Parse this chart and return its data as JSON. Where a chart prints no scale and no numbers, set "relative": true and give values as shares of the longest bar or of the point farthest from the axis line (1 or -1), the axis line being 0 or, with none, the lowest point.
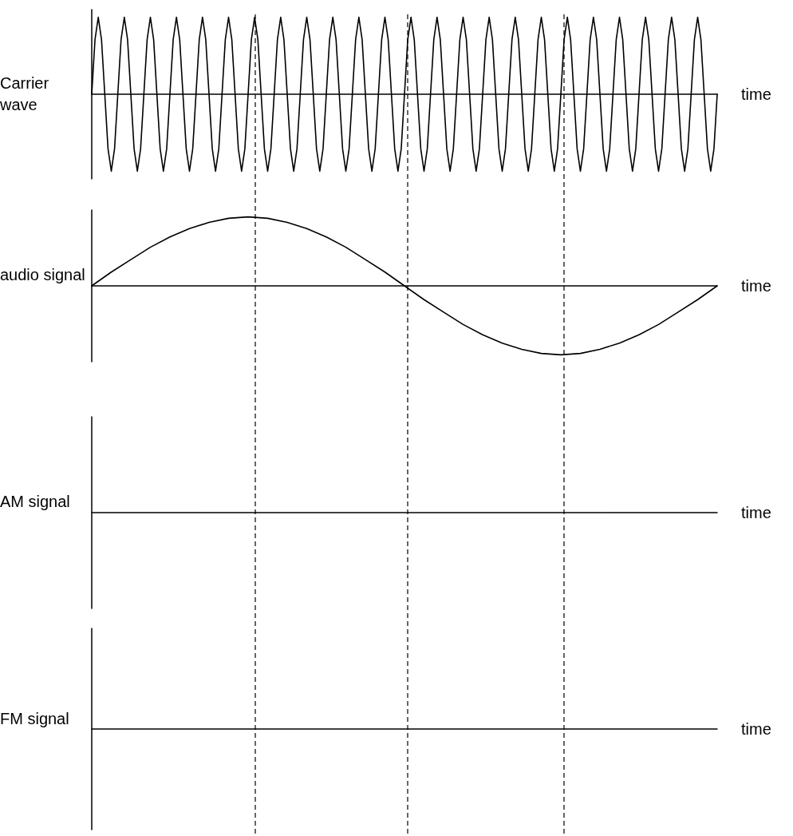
{
  "chart_data": [
    {
      "type": "line",
      "relative": true,
      "ylabel": "Carrier wave",
      "xlabel": "time",
      "marker": "none",
      "line_style": "solid",
      "categories": [
        null,
        null,
        null,
        null,
        null,
        null,
        null,
        null,
        null,
        null,
        null,
        null,
        null,
        null,
        null,
        null,
        null,
        null,
        null,
        null,
        null,
        null,
        null,
        null,
        null,
        null,
        null,
        null,
        null,
        null,
        null,
        null,
        null,
        null,
        null,
        null,
        null,
        null,
        null,
        null,
        null,
        null,
        null,
        null,
        null,
        null,
        null,
        null,
        null,
        null,
        null,
        null,
        null,
        null,
        null,
        null,
        null,
        null,
        null,
        null,
        null,
        null,
        null,
        null,
        null,
        null,
        null,
        null,
        null,
        null,
        null,
        null,
        null,
        null,
        null,
        null,
        null,
        null,
        null,
        null,
        null,
        null,
        null,
        null,
        null,
        null,
        null,
        null,
        null,
        null,
        null,
        null,
        null,
        null,
        null,
        null,
        null,
        null,
        null,
        null,
        null,
        null,
        null,
        null,
        null,
        null,
        null,
        null,
        null,
        null,
        null,
        null,
        null,
        null,
        null,
        null,
        null,
        null,
        null,
        null,
        null,
        null,
        null,
        null,
        null,
        null,
        null,
        null,
        null,
        null,
        null,
        null,
        null,
        null,
        null,
        null,
        null,
        null,
        null,
        null,
        null,
        null,
        null,
        null,
        null,
        null,
        null,
        null,
        null,
        null,
        null,
        null,
        null,
        null,
        null,
        null,
        null,
        null,
        null,
        null,
        null,
        null,
        null,
        null,
        null,
        null,
        null,
        null,
        null,
        null,
        null,
        null,
        null,
        null,
        null,
        null,
        null,
        null,
        null,
        null,
        null,
        null,
        null,
        null,
        null,
        null,
        null,
        null,
        null,
        null,
        null,
        null,
        null
      ],
      "series": [
        {
          "color": "#000000",
          "values": [
            0,
            0.71,
            1,
            0.71,
            0,
            -0.71,
            -1,
            -0.71,
            0,
            0.71,
            1,
            0.71,
            0,
            -0.71,
            -1,
            -0.71,
            0,
            0.71,
            1,
            0.71,
            0,
            -0.71,
            -1,
            -0.71,
            0,
            0.71,
            1,
            0.71,
            0,
            -0.71,
            -1,
            -0.71,
            0,
            0.71,
            1,
            0.71,
            0,
            -0.71,
            -1,
            -0.71,
            0,
            0.71,
            1,
            0.71,
            0,
            -0.71,
            -1,
            -0.71,
            0,
            0.71,
            1,
            0.71,
            0,
            -0.71,
            -1,
            -0.71,
            0,
            0.71,
            1,
            0.71,
            0,
            -0.71,
            -1,
            -0.71,
            0,
            0.71,
            1,
            0.71,
            0,
            -0.71,
            -1,
            -0.71,
            0,
            0.71,
            1,
            0.71,
            0,
            -0.71,
            -1,
            -0.71,
            0,
            0.71,
            1,
            0.71,
            0,
            -0.71,
            -1,
            -0.71,
            0,
            0.71,
            1,
            0.71,
            0,
            -0.71,
            -1,
            -0.71,
            0,
            0.71,
            1,
            0.71,
            0,
            -0.71,
            -1,
            -0.71,
            0,
            0.71,
            1,
            0.71,
            0,
            -0.71,
            -1,
            -0.71,
            0,
            0.71,
            1,
            0.71,
            0,
            -0.71,
            -1,
            -0.71,
            0,
            0.71,
            1,
            0.71,
            0,
            -0.71,
            -1,
            -0.71,
            0,
            0.71,
            1,
            0.71,
            0,
            -0.71,
            -1,
            -0.71,
            0,
            0.71,
            1,
            0.71,
            0,
            -0.71,
            -1,
            -0.71,
            0,
            0.71,
            1,
            0.71,
            0,
            -0.71,
            -1,
            -0.71,
            0,
            0.71,
            1,
            0.71,
            0,
            -0.71,
            -1,
            -0.71,
            0,
            0.71,
            1,
            0.71,
            0,
            -0.71,
            -1,
            -0.71,
            0,
            0.71,
            1,
            0.71,
            0,
            -0.71,
            -1,
            -0.71,
            0,
            0.71,
            1,
            0.71,
            0,
            -0.71,
            -1,
            -0.71,
            0,
            0.71,
            1,
            0.71,
            0,
            -0.71,
            -1,
            -0.71,
            0
          ]
        }
      ]
    },
    {
      "type": "line",
      "relative": true,
      "ylabel": "audio signal",
      "xlabel": "time",
      "marker": "none",
      "line_style": "solid",
      "categories": [
        null,
        null,
        null,
        null,
        null,
        null,
        null,
        null,
        null,
        null,
        null,
        null,
        null,
        null,
        null,
        null,
        null,
        null,
        null,
        null,
        null,
        null,
        null,
        null,
        null,
        null,
        null,
        null,
        null,
        null,
        null,
        null,
        null
      ],
      "series": [
        {
          "color": "#000000",
          "values": [
            0,
            0.2,
            0.38,
            0.56,
            0.71,
            0.83,
            0.92,
            0.98,
            1,
            0.98,
            0.92,
            0.83,
            0.71,
            0.56,
            0.38,
            0.2,
            0,
            -0.2,
            -0.38,
            -0.56,
            -0.71,
            -0.83,
            -0.92,
            -0.98,
            -1,
            -0.98,
            -0.92,
            -0.83,
            -0.71,
            -0.56,
            -0.38,
            -0.2,
            0
          ]
        }
      ]
    },
    {
      "type": "other",
      "ylabel": "AM signal",
      "xlabel": "time"
    },
    {
      "type": "other",
      "ylabel": "FM signal",
      "xlabel": "time"
    }
  ]
}
